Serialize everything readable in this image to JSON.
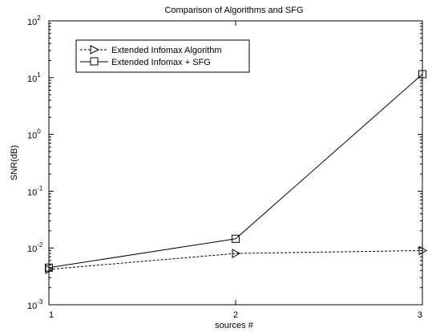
{
  "chart_data": {
    "type": "line",
    "title": "Comparison of Algorithms and SFG",
    "xlabel": "sources #",
    "ylabel": "SNR(dB)",
    "x": [
      1,
      2,
      3
    ],
    "xlim": [
      1,
      3
    ],
    "ylim": [
      0.001,
      100
    ],
    "yscale": "log",
    "x_ticks": [
      "1",
      "2",
      "3"
    ],
    "y_ticks": [
      {
        "base": "10",
        "exp": "-3",
        "value": 0.001
      },
      {
        "base": "10",
        "exp": "-2",
        "value": 0.01
      },
      {
        "base": "10",
        "exp": "-1",
        "value": 0.1
      },
      {
        "base": "10",
        "exp": "0",
        "value": 1
      },
      {
        "base": "10",
        "exp": "1",
        "value": 10
      },
      {
        "base": "10",
        "exp": "2",
        "value": 100
      }
    ],
    "grid": false,
    "legend_position": "top-left",
    "series": [
      {
        "name": "Extended Infomax Algorithm",
        "values": [
          0.0042,
          0.008,
          0.009
        ],
        "line": "dashed",
        "marker": "triangle-right",
        "color": "#000000"
      },
      {
        "name": "Extended Infomax + SFG",
        "values": [
          0.0045,
          0.0145,
          11.5
        ],
        "line": "solid",
        "marker": "square",
        "color": "#000000"
      }
    ]
  }
}
